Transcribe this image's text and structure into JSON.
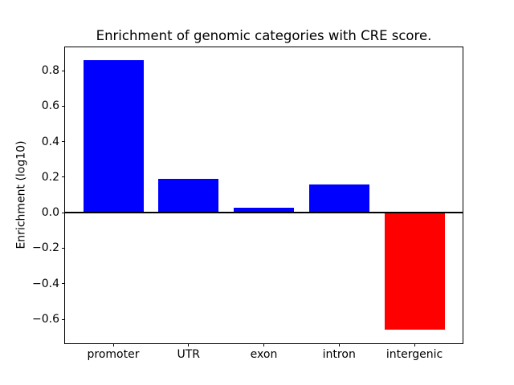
{
  "figure": {
    "background": "#ffffff",
    "spine_color": "#000000",
    "text_color": "#000000"
  },
  "chart_data": {
    "type": "bar",
    "title": "Enrichment of genomic categories with CRE score.",
    "xlabel": "",
    "ylabel": "Enrichment (log10)",
    "categories": [
      "promoter",
      "UTR",
      "exon",
      "intron",
      "intergenic"
    ],
    "values": [
      0.86,
      0.19,
      0.03,
      0.16,
      -0.66
    ],
    "bar_colors": [
      "#0000ff",
      "#0000ff",
      "#0000ff",
      "#0000ff",
      "#ff0000"
    ],
    "positive_color": "#0000ff",
    "negative_color": "#ff0000",
    "ylim": [
      -0.731,
      0.936
    ],
    "yticks": [
      -0.6,
      -0.4,
      -0.2,
      0.0,
      0.2,
      0.4,
      0.6,
      0.8
    ],
    "ytick_labels": [
      "−0.6",
      "−0.4",
      "−0.2",
      "0.0",
      "0.2",
      "0.4",
      "0.6",
      "0.8"
    ],
    "grid": false,
    "legend": null,
    "zero_line": true
  }
}
